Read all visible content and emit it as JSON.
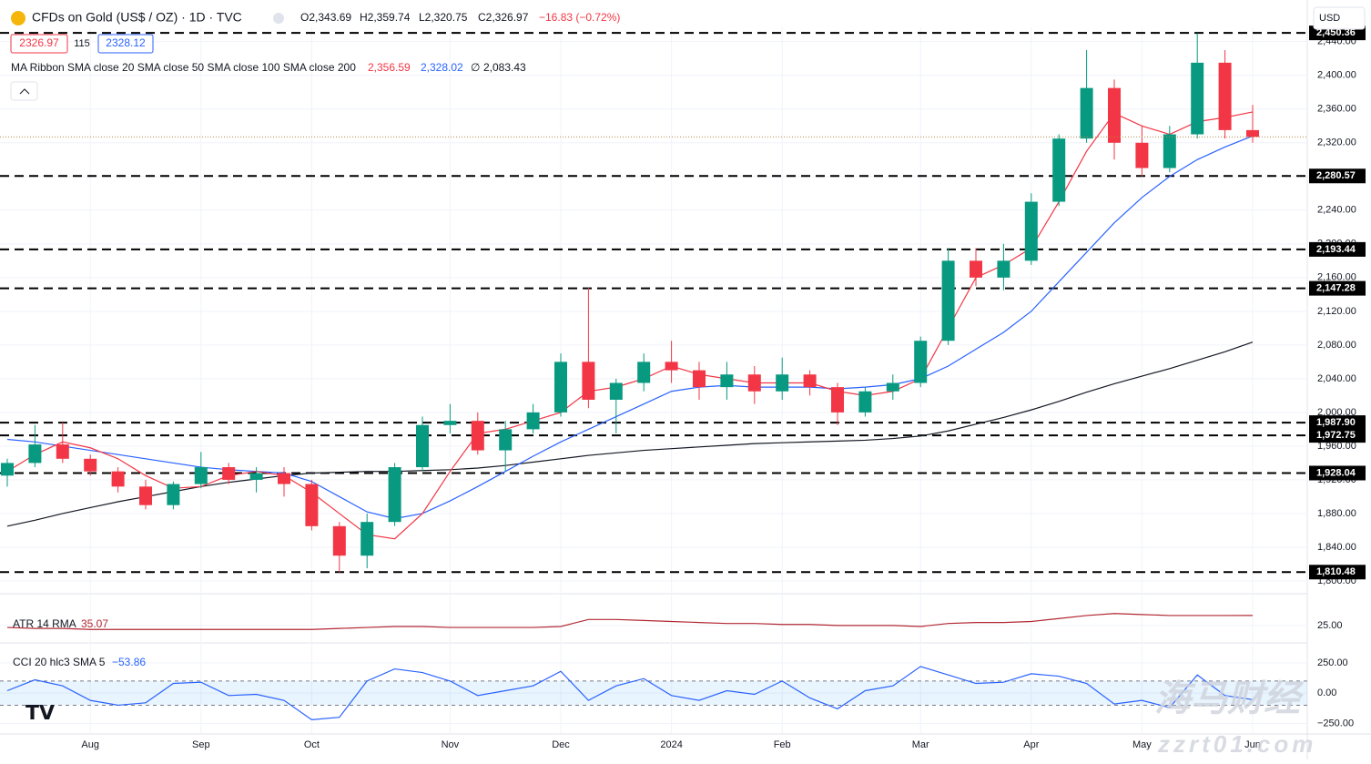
{
  "header": {
    "symbol": "CFDs on Gold (US$ / OZ) · 1D · TVC",
    "open": "O2,343.69",
    "high": "H2,359.74",
    "low": "L2,320.75",
    "close": "C2,326.97",
    "change": "−16.83 (−0.72%)",
    "sell_price": "2326.97",
    "spread": "115",
    "buy_price": "2328.12",
    "currency": "USD"
  },
  "indicators": {
    "ma_ribbon": "MA Ribbon SMA close 20 SMA close 50 SMA close 100 SMA close 200",
    "ma20_value": "2,356.59",
    "ma50_value": "2,328.02",
    "ma100_value": "∅",
    "ma200_value": "2,083.43",
    "atr_label": "ATR 14 RMA",
    "atr_value": "35.07",
    "cci_label": "CCI 20 hlc3 SMA 5",
    "cci_value": "−53.86"
  },
  "watermark": {
    "brand": "海马财经",
    "site": "zzrt01.com"
  },
  "chart_data": {
    "type": "candlestick",
    "categories": [
      null,
      null,
      null,
      "Aug",
      null,
      null,
      null,
      "Sep",
      null,
      null,
      null,
      "Oct",
      null,
      null,
      null,
      null,
      "Nov",
      null,
      null,
      null,
      "Dec",
      null,
      null,
      null,
      "2024",
      null,
      null,
      null,
      "Feb",
      null,
      null,
      null,
      null,
      "Mar",
      null,
      null,
      null,
      "Apr",
      null,
      null,
      null,
      "May",
      null,
      null,
      null,
      "Jun"
    ],
    "open": [
      1925,
      1940,
      1962,
      1945,
      1930,
      1912,
      1890,
      1915,
      1935,
      1920,
      1928,
      1915,
      1865,
      1830,
      1870,
      1935,
      1985,
      1990,
      1955,
      1980,
      2000,
      2060,
      2015,
      2035,
      2060,
      2050,
      2030,
      2045,
      2025,
      2045,
      2030,
      2000,
      2025,
      2035,
      2085,
      2180,
      2160,
      2180,
      2250,
      2325,
      2385,
      2320,
      2290,
      2330,
      2415,
      2335
    ],
    "high": [
      1945,
      1985,
      1988,
      1950,
      1935,
      1920,
      1918,
      1953,
      1940,
      1935,
      1935,
      1920,
      1870,
      1880,
      1940,
      1995,
      2010,
      2000,
      1990,
      2010,
      2070,
      2148,
      2040,
      2070,
      2085,
      2060,
      2060,
      2055,
      2065,
      2050,
      2035,
      2030,
      2045,
      2090,
      2195,
      2195,
      2200,
      2260,
      2330,
      2430,
      2395,
      2340,
      2340,
      2450,
      2430,
      2365
    ],
    "low": [
      1912,
      1935,
      1940,
      1925,
      1905,
      1885,
      1885,
      1910,
      1915,
      1905,
      1900,
      1860,
      1810,
      1815,
      1865,
      1930,
      1975,
      1950,
      1930,
      1975,
      1995,
      2005,
      1975,
      2025,
      2035,
      2015,
      2015,
      2010,
      2015,
      2020,
      1985,
      1995,
      2015,
      2030,
      2080,
      2150,
      2145,
      2175,
      2245,
      2320,
      2300,
      2280,
      2285,
      2325,
      2325,
      2320
    ],
    "close": [
      1940,
      1962,
      1945,
      1930,
      1912,
      1890,
      1915,
      1935,
      1920,
      1928,
      1915,
      1865,
      1830,
      1870,
      1935,
      1985,
      1990,
      1955,
      1980,
      2000,
      2060,
      2015,
      2035,
      2060,
      2050,
      2030,
      2045,
      2025,
      2045,
      2030,
      2000,
      2025,
      2035,
      2085,
      2180,
      2160,
      2180,
      2250,
      2325,
      2385,
      2320,
      2290,
      2330,
      2415,
      2335,
      2326.97
    ],
    "up_color": "#089981",
    "down_color": "#f23645",
    "sma20": {
      "color": "#f23645",
      "values": [
        1930,
        1950,
        1965,
        1958,
        1945,
        1925,
        1910,
        1912,
        1925,
        1930,
        1925,
        1905,
        1880,
        1855,
        1850,
        1880,
        1930,
        1975,
        1980,
        1990,
        2000,
        2025,
        2030,
        2040,
        2055,
        2045,
        2040,
        2035,
        2035,
        2035,
        2025,
        2020,
        2025,
        2040,
        2100,
        2160,
        2175,
        2195,
        2250,
        2310,
        2355,
        2340,
        2330,
        2345,
        2350,
        2356.59
      ]
    },
    "sma50": {
      "color": "#2962ff",
      "values": [
        1968,
        1965,
        1960,
        1955,
        1950,
        1945,
        1940,
        1935,
        1932,
        1930,
        1928,
        1918,
        1900,
        1882,
        1874,
        1880,
        1895,
        1912,
        1930,
        1948,
        1965,
        1980,
        1995,
        2010,
        2025,
        2030,
        2032,
        2030,
        2030,
        2030,
        2028,
        2030,
        2033,
        2040,
        2055,
        2075,
        2095,
        2120,
        2155,
        2190,
        2225,
        2255,
        2280,
        2300,
        2315,
        2328.02
      ]
    },
    "sma200": {
      "color": "#131722",
      "values": [
        1865,
        1872,
        1880,
        1887,
        1894,
        1900,
        1906,
        1912,
        1917,
        1921,
        1925,
        1928,
        1929,
        1930,
        1930,
        1931,
        1932,
        1934,
        1937,
        1941,
        1945,
        1949,
        1952,
        1955,
        1957,
        1959,
        1961,
        1963,
        1964,
        1965,
        1966,
        1967,
        1969,
        1972,
        1978,
        1986,
        1994,
        2003,
        2013,
        2024,
        2034,
        2043,
        2052,
        2062,
        2072,
        2083.43
      ]
    },
    "ylim": [
      1787,
      2457
    ],
    "yticks": [
      {
        "value": 1800,
        "label": "1,800.00"
      },
      {
        "value": 1840,
        "label": "1,840.00"
      },
      {
        "value": 1880,
        "label": "1,880.00"
      },
      {
        "value": 1920,
        "label": "1,920.00"
      },
      {
        "value": 1960,
        "label": "1,960.00"
      },
      {
        "value": 2000,
        "label": "2,000.00"
      },
      {
        "value": 2040,
        "label": "2,040.00"
      },
      {
        "value": 2080,
        "label": "2,080.00"
      },
      {
        "value": 2120,
        "label": "2,120.00"
      },
      {
        "value": 2160,
        "label": "2,160.00"
      },
      {
        "value": 2200,
        "label": "2,200.00"
      },
      {
        "value": 2240,
        "label": "2,240.00"
      },
      {
        "value": 2280,
        "label": "2,280.00"
      },
      {
        "value": 2320,
        "label": "2,320.00"
      },
      {
        "value": 2360,
        "label": "2,360.00"
      },
      {
        "value": 2400,
        "label": "2,400.00"
      },
      {
        "value": 2440,
        "label": "2,440.00"
      }
    ],
    "levels": [
      {
        "value": 2450.36,
        "label": "2,450.36"
      },
      {
        "value": 2280.57,
        "label": "2,280.57"
      },
      {
        "value": 2193.44,
        "label": "2,193.44"
      },
      {
        "value": 2147.28,
        "label": "2,147.28"
      },
      {
        "value": 1987.9,
        "label": "1,987.90"
      },
      {
        "value": 1972.75,
        "label": "1,972.75"
      },
      {
        "value": 1928.04,
        "label": "1,928.04"
      },
      {
        "value": 1810.48,
        "label": "1,810.48"
      }
    ],
    "grid": true,
    "atr": {
      "color": "#b22833",
      "values": [
        23,
        22,
        22,
        21,
        21,
        21,
        21,
        21,
        21,
        21,
        21,
        21,
        22,
        23,
        24,
        24,
        23,
        23,
        23,
        23,
        24,
        31,
        31,
        30,
        29,
        28,
        27,
        27,
        26,
        26,
        25,
        25,
        25,
        24,
        27,
        28,
        28,
        29,
        32,
        35,
        37,
        36,
        35,
        35,
        35,
        35.07
      ],
      "ylim": [
        13,
        45
      ],
      "yticks": [
        {
          "value": 25,
          "label": "25.00"
        }
      ]
    },
    "cci": {
      "color": "#2962ff",
      "values": [
        20,
        110,
        60,
        -60,
        -100,
        -80,
        80,
        90,
        -20,
        -10,
        -60,
        -220,
        -200,
        100,
        200,
        170,
        100,
        -20,
        20,
        60,
        180,
        -60,
        60,
        120,
        -20,
        -60,
        20,
        -10,
        100,
        -40,
        -130,
        20,
        60,
        220,
        150,
        80,
        90,
        160,
        140,
        80,
        -90,
        -60,
        -120,
        150,
        -20,
        -53.86
      ],
      "ylim": [
        -330,
        370
      ],
      "band": [
        100,
        -100
      ],
      "yticks": [
        {
          "value": 250,
          "label": "250.00"
        },
        {
          "value": 0,
          "label": "0.00"
        },
        {
          "value": -250,
          "label": "−250.00"
        }
      ]
    }
  }
}
